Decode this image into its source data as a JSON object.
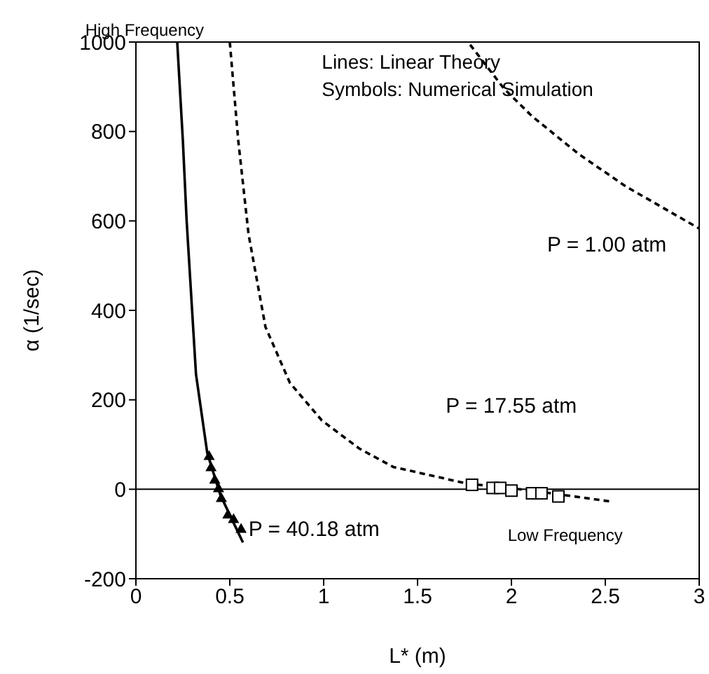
{
  "chart_data": {
    "type": "line",
    "xlabel": "L* (m)",
    "ylabel": "α  (1/sec)",
    "xlim": [
      0,
      3
    ],
    "xticks": [
      0,
      0.5,
      1,
      1.5,
      2,
      2.5,
      3
    ],
    "ylim": [
      -200,
      1000
    ],
    "yticks": [
      -200,
      0,
      200,
      400,
      600,
      800,
      1000
    ],
    "annotations": [
      "High Frequency",
      "Lines: Linear Theory",
      "Symbols: Numerical Simulation",
      "Low Frequency"
    ],
    "ref_lines": [
      {
        "axis": "y",
        "value": 0,
        "color": "#000000"
      }
    ],
    "series": [
      {
        "name": "P = 40.18 atm",
        "color": "#000000",
        "line_style": "solid",
        "marker": "none",
        "x": [
          0.22,
          0.25,
          0.27,
          0.32,
          0.38,
          0.45,
          0.57
        ],
        "values": [
          1000,
          780,
          602,
          257,
          81,
          -13,
          -119
        ]
      },
      {
        "name": "P = 17.55 atm",
        "color": "#000000",
        "line_style": "dashed",
        "marker": "none",
        "x": [
          0.5,
          0.545,
          0.6,
          0.69,
          0.82,
          0.99,
          1.19,
          1.37,
          1.76,
          2.11,
          2.54
        ],
        "values": [
          1000,
          780,
          570,
          363,
          238,
          154,
          91,
          50,
          13,
          -3,
          -28
        ]
      },
      {
        "name": "P = 1.00 atm",
        "color": "#000000",
        "line_style": "dashed",
        "marker": "none",
        "x": [
          1.78,
          1.96,
          2.11,
          2.36,
          2.61,
          3.0
        ],
        "values": [
          994,
          896,
          834,
          749,
          677,
          583
        ]
      },
      {
        "type": "scatter",
        "color": "#000000",
        "marker": "triangle",
        "x": [
          0.39,
          0.4,
          0.42,
          0.44,
          0.455,
          0.49,
          0.52,
          0.56
        ],
        "values": [
          75,
          50,
          22,
          3,
          -19,
          -56,
          -66,
          -88
        ]
      },
      {
        "type": "scatter",
        "color": "#000000",
        "marker": "square",
        "x": [
          1.79,
          1.9,
          1.94,
          2.0,
          2.11,
          2.16,
          2.25
        ],
        "values": [
          10,
          3,
          3,
          -3,
          -9,
          -9,
          -16
        ]
      }
    ]
  }
}
